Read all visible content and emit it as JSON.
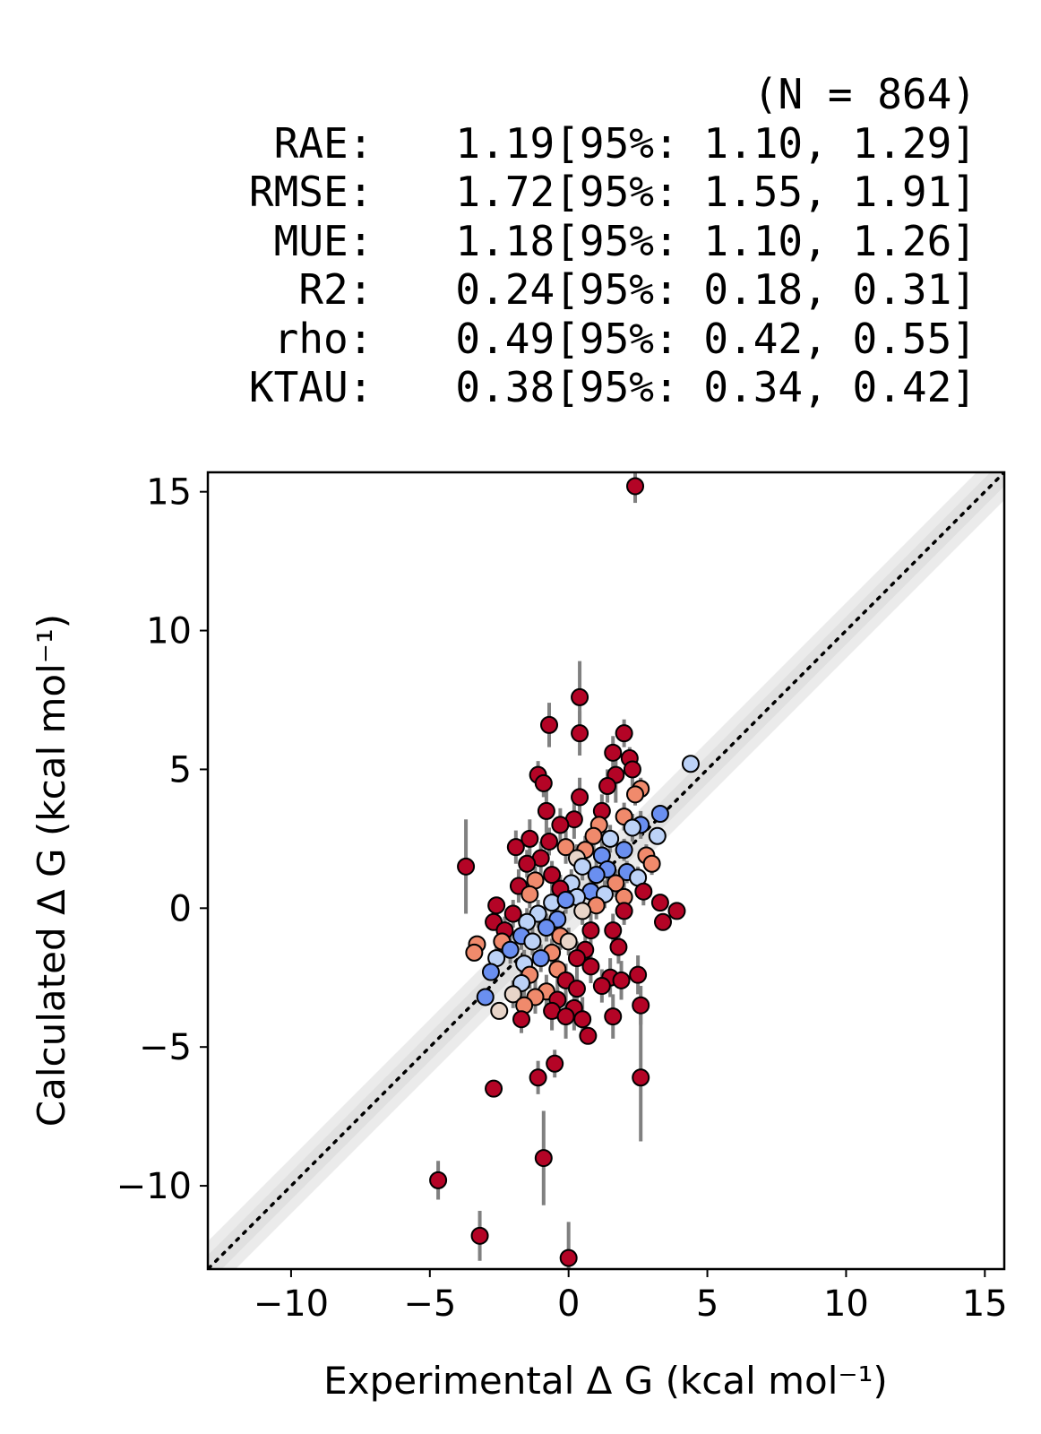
{
  "stats": {
    "n_label": "(N = 864)",
    "rows": [
      {
        "label": "RAE:",
        "value": "1.19",
        "ci": "[95%: 1.10, 1.29]"
      },
      {
        "label": "RMSE:",
        "value": "1.72",
        "ci": "[95%: 1.55, 1.91]"
      },
      {
        "label": "MUE:",
        "value": "1.18",
        "ci": "[95%: 1.10, 1.26]"
      },
      {
        "label": "R2:",
        "value": "0.24",
        "ci": "[95%: 0.18, 0.31]"
      },
      {
        "label": "rho:",
        "value": "0.49",
        "ci": "[95%: 0.42, 0.55]"
      },
      {
        "label": "KTAU:",
        "value": "0.38",
        "ci": "[95%: 0.34, 0.42]"
      }
    ]
  },
  "chart_data": {
    "type": "scatter",
    "xlabel": "Experimental Δ G (kcal mol⁻¹)",
    "ylabel": "Calculated Δ G (kcal mol⁻¹)",
    "xlim": [
      -13,
      15.7
    ],
    "ylim": [
      -13,
      15.7
    ],
    "xticks": [
      -10,
      -5,
      0,
      5,
      10,
      15
    ],
    "yticks": [
      -10,
      -5,
      0,
      5,
      10,
      15
    ],
    "tick_labels": [
      "−10",
      "−5",
      "0",
      "5",
      "10",
      "15"
    ],
    "identity_line": true,
    "shaded_bands_kcal": [
      0.5,
      1.0
    ],
    "colors": {
      "red": "#b40426",
      "salmon": "#f08a6c",
      "pale": "#e8d5c9",
      "light_blue": "#bcd2f7",
      "blue": "#6a8ff0",
      "errorbar": "#808080",
      "band": "#d3d3d3"
    },
    "points": [
      {
        "x": 2.4,
        "y": 15.2,
        "err": 0.6,
        "c": "red"
      },
      {
        "x": 0.4,
        "y": 7.6,
        "err": 1.3,
        "c": "red"
      },
      {
        "x": -0.7,
        "y": 6.6,
        "err": 0.8,
        "c": "red"
      },
      {
        "x": 0.4,
        "y": 6.3,
        "err": 0.8,
        "c": "red"
      },
      {
        "x": 2.0,
        "y": 6.3,
        "err": 0.5,
        "c": "red"
      },
      {
        "x": 2.2,
        "y": 5.4,
        "err": 0.4,
        "c": "red"
      },
      {
        "x": 1.6,
        "y": 5.6,
        "err": 0.6,
        "c": "red"
      },
      {
        "x": 4.4,
        "y": 5.2,
        "err": 0.0,
        "c": "light_blue"
      },
      {
        "x": 2.3,
        "y": 5.0,
        "err": 0.6,
        "c": "red"
      },
      {
        "x": -1.1,
        "y": 4.8,
        "err": 0.5,
        "c": "red"
      },
      {
        "x": -0.9,
        "y": 4.5,
        "err": 0.5,
        "c": "red"
      },
      {
        "x": 1.7,
        "y": 4.8,
        "err": 1.0,
        "c": "red"
      },
      {
        "x": 2.6,
        "y": 4.3,
        "err": 0.4,
        "c": "salmon"
      },
      {
        "x": 2.4,
        "y": 4.1,
        "err": 0.4,
        "c": "salmon"
      },
      {
        "x": 1.4,
        "y": 4.4,
        "err": 0.6,
        "c": "red"
      },
      {
        "x": 0.4,
        "y": 4.0,
        "err": 0.7,
        "c": "red"
      },
      {
        "x": -0.8,
        "y": 3.5,
        "err": 0.8,
        "c": "red"
      },
      {
        "x": 3.3,
        "y": 3.4,
        "err": 0.0,
        "c": "blue"
      },
      {
        "x": 1.2,
        "y": 3.5,
        "err": 0.6,
        "c": "red"
      },
      {
        "x": 2.0,
        "y": 3.3,
        "err": 0.5,
        "c": "salmon"
      },
      {
        "x": 0.2,
        "y": 3.2,
        "err": 0.7,
        "c": "red"
      },
      {
        "x": -0.3,
        "y": 3.0,
        "err": 0.6,
        "c": "red"
      },
      {
        "x": 1.1,
        "y": 3.0,
        "err": 0.5,
        "c": "salmon"
      },
      {
        "x": 2.6,
        "y": 3.0,
        "err": 0.5,
        "c": "blue"
      },
      {
        "x": 2.3,
        "y": 2.9,
        "err": 0.5,
        "c": "light_blue"
      },
      {
        "x": 3.2,
        "y": 2.6,
        "err": 0.0,
        "c": "light_blue"
      },
      {
        "x": 0.9,
        "y": 2.6,
        "err": 0.6,
        "c": "salmon"
      },
      {
        "x": -1.4,
        "y": 2.5,
        "err": 0.7,
        "c": "red"
      },
      {
        "x": -0.7,
        "y": 2.4,
        "err": 0.5,
        "c": "red"
      },
      {
        "x": 1.5,
        "y": 2.5,
        "err": 0.5,
        "c": "light_blue"
      },
      {
        "x": -1.9,
        "y": 2.2,
        "err": 0.6,
        "c": "red"
      },
      {
        "x": -0.1,
        "y": 2.2,
        "err": 0.6,
        "c": "salmon"
      },
      {
        "x": 0.6,
        "y": 2.1,
        "err": 0.5,
        "c": "salmon"
      },
      {
        "x": 2.0,
        "y": 2.1,
        "err": 0.4,
        "c": "blue"
      },
      {
        "x": 2.8,
        "y": 1.9,
        "err": 0.4,
        "c": "salmon"
      },
      {
        "x": -1.0,
        "y": 1.8,
        "err": 0.6,
        "c": "red"
      },
      {
        "x": 0.3,
        "y": 1.8,
        "err": 0.5,
        "c": "pale"
      },
      {
        "x": 1.2,
        "y": 1.9,
        "err": 0.5,
        "c": "blue"
      },
      {
        "x": 3.0,
        "y": 1.6,
        "err": 0.4,
        "c": "salmon"
      },
      {
        "x": -3.7,
        "y": 1.5,
        "err": 1.7,
        "c": "red"
      },
      {
        "x": -1.5,
        "y": 1.6,
        "err": 0.5,
        "c": "red"
      },
      {
        "x": 0.5,
        "y": 1.5,
        "err": 0.5,
        "c": "light_blue"
      },
      {
        "x": 1.4,
        "y": 1.4,
        "err": 0.5,
        "c": "blue"
      },
      {
        "x": 2.1,
        "y": 1.3,
        "err": 0.4,
        "c": "blue"
      },
      {
        "x": -0.6,
        "y": 1.2,
        "err": 0.5,
        "c": "red"
      },
      {
        "x": 1.0,
        "y": 1.2,
        "err": 0.5,
        "c": "blue"
      },
      {
        "x": 2.5,
        "y": 1.1,
        "err": 0.4,
        "c": "light_blue"
      },
      {
        "x": -1.2,
        "y": 1.0,
        "err": 0.5,
        "c": "salmon"
      },
      {
        "x": 0.1,
        "y": 0.9,
        "err": 0.5,
        "c": "light_blue"
      },
      {
        "x": 1.7,
        "y": 0.9,
        "err": 0.5,
        "c": "salmon"
      },
      {
        "x": -1.8,
        "y": 0.8,
        "err": 0.6,
        "c": "red"
      },
      {
        "x": -0.3,
        "y": 0.7,
        "err": 0.5,
        "c": "red"
      },
      {
        "x": 0.8,
        "y": 0.6,
        "err": 0.5,
        "c": "blue"
      },
      {
        "x": 2.7,
        "y": 0.6,
        "err": 0.5,
        "c": "red"
      },
      {
        "x": -1.4,
        "y": 0.5,
        "err": 0.5,
        "c": "salmon"
      },
      {
        "x": 0.3,
        "y": 0.4,
        "err": 0.5,
        "c": "light_blue"
      },
      {
        "x": 1.3,
        "y": 0.5,
        "err": 0.5,
        "c": "light_blue"
      },
      {
        "x": 2.0,
        "y": 0.4,
        "err": 0.5,
        "c": "salmon"
      },
      {
        "x": 3.3,
        "y": 0.2,
        "err": 0.0,
        "c": "red"
      },
      {
        "x": -2.6,
        "y": 0.1,
        "err": 0.0,
        "c": "red"
      },
      {
        "x": -0.6,
        "y": 0.2,
        "err": 0.5,
        "c": "light_blue"
      },
      {
        "x": -0.1,
        "y": 0.3,
        "err": 0.5,
        "c": "blue"
      },
      {
        "x": 1.0,
        "y": 0.1,
        "err": 0.5,
        "c": "salmon"
      },
      {
        "x": 3.9,
        "y": -0.1,
        "err": 0.0,
        "c": "red"
      },
      {
        "x": -2.0,
        "y": -0.2,
        "err": 0.5,
        "c": "red"
      },
      {
        "x": -1.1,
        "y": -0.2,
        "err": 0.5,
        "c": "light_blue"
      },
      {
        "x": 0.5,
        "y": -0.1,
        "err": 0.5,
        "c": "pale"
      },
      {
        "x": 2.0,
        "y": -0.1,
        "err": 0.5,
        "c": "red"
      },
      {
        "x": -2.7,
        "y": -0.5,
        "err": 0.0,
        "c": "red"
      },
      {
        "x": -1.5,
        "y": -0.5,
        "err": 0.5,
        "c": "light_blue"
      },
      {
        "x": -0.4,
        "y": -0.4,
        "err": 0.5,
        "c": "blue"
      },
      {
        "x": 3.4,
        "y": -0.5,
        "err": 0.0,
        "c": "red"
      },
      {
        "x": -2.3,
        "y": -0.8,
        "err": 0.5,
        "c": "red"
      },
      {
        "x": -0.8,
        "y": -0.7,
        "err": 0.5,
        "c": "blue"
      },
      {
        "x": 0.8,
        "y": -0.8,
        "err": 0.6,
        "c": "red"
      },
      {
        "x": 1.6,
        "y": -0.8,
        "err": 0.6,
        "c": "red"
      },
      {
        "x": -1.7,
        "y": -1.0,
        "err": 0.5,
        "c": "blue"
      },
      {
        "x": -0.3,
        "y": -1.0,
        "err": 0.5,
        "c": "salmon"
      },
      {
        "x": -2.4,
        "y": -1.2,
        "err": 0.5,
        "c": "salmon"
      },
      {
        "x": -1.3,
        "y": -1.2,
        "err": 0.5,
        "c": "light_blue"
      },
      {
        "x": 0.0,
        "y": -1.2,
        "err": 0.5,
        "c": "pale"
      },
      {
        "x": 1.8,
        "y": -1.4,
        "err": 0.6,
        "c": "red"
      },
      {
        "x": -3.3,
        "y": -1.3,
        "err": 0.0,
        "c": "salmon"
      },
      {
        "x": -3.4,
        "y": -1.6,
        "err": 0.0,
        "c": "salmon"
      },
      {
        "x": -2.1,
        "y": -1.5,
        "err": 0.5,
        "c": "blue"
      },
      {
        "x": -0.6,
        "y": -1.6,
        "err": 0.5,
        "c": "salmon"
      },
      {
        "x": 0.6,
        "y": -1.5,
        "err": 0.6,
        "c": "red"
      },
      {
        "x": -2.6,
        "y": -1.8,
        "err": 0.5,
        "c": "light_blue"
      },
      {
        "x": -1.0,
        "y": -1.8,
        "err": 0.5,
        "c": "blue"
      },
      {
        "x": 0.3,
        "y": -1.8,
        "err": 0.6,
        "c": "red"
      },
      {
        "x": -1.6,
        "y": -2.0,
        "err": 0.5,
        "c": "light_blue"
      },
      {
        "x": 0.8,
        "y": -2.1,
        "err": 0.6,
        "c": "red"
      },
      {
        "x": -0.4,
        "y": -2.2,
        "err": 0.6,
        "c": "salmon"
      },
      {
        "x": -2.8,
        "y": -2.3,
        "err": 0.0,
        "c": "blue"
      },
      {
        "x": -1.4,
        "y": -2.4,
        "err": 0.5,
        "c": "salmon"
      },
      {
        "x": 1.5,
        "y": -2.5,
        "err": 0.7,
        "c": "red"
      },
      {
        "x": 1.9,
        "y": -2.6,
        "err": 0.7,
        "c": "red"
      },
      {
        "x": 2.5,
        "y": -2.4,
        "err": 0.7,
        "c": "red"
      },
      {
        "x": -0.1,
        "y": -2.6,
        "err": 0.6,
        "c": "red"
      },
      {
        "x": -1.7,
        "y": -2.7,
        "err": 0.5,
        "c": "light_blue"
      },
      {
        "x": 1.2,
        "y": -2.8,
        "err": 0.6,
        "c": "red"
      },
      {
        "x": -0.8,
        "y": -3.0,
        "err": 0.6,
        "c": "salmon"
      },
      {
        "x": 0.3,
        "y": -2.9,
        "err": 0.7,
        "c": "red"
      },
      {
        "x": -2.0,
        "y": -3.1,
        "err": 0.5,
        "c": "pale"
      },
      {
        "x": -1.2,
        "y": -3.2,
        "err": 0.6,
        "c": "salmon"
      },
      {
        "x": -3.0,
        "y": -3.2,
        "err": 0.0,
        "c": "blue"
      },
      {
        "x": -0.4,
        "y": -3.3,
        "err": 0.7,
        "c": "red"
      },
      {
        "x": -1.6,
        "y": -3.5,
        "err": 0.6,
        "c": "salmon"
      },
      {
        "x": 2.6,
        "y": -3.5,
        "err": 0.7,
        "c": "red"
      },
      {
        "x": 0.2,
        "y": -3.6,
        "err": 0.8,
        "c": "red"
      },
      {
        "x": -0.6,
        "y": -3.7,
        "err": 0.7,
        "c": "red"
      },
      {
        "x": -2.5,
        "y": -3.7,
        "err": 0.0,
        "c": "pale"
      },
      {
        "x": -0.1,
        "y": -3.9,
        "err": 0.8,
        "c": "red"
      },
      {
        "x": 1.6,
        "y": -3.9,
        "err": 0.8,
        "c": "red"
      },
      {
        "x": -1.7,
        "y": -4.0,
        "err": 0.5,
        "c": "red"
      },
      {
        "x": 0.5,
        "y": -4.0,
        "err": 0.8,
        "c": "red"
      },
      {
        "x": 0.7,
        "y": -4.6,
        "err": 0.0,
        "c": "red"
      },
      {
        "x": -0.5,
        "y": -5.6,
        "err": 0.5,
        "c": "red"
      },
      {
        "x": -1.1,
        "y": -6.1,
        "err": 0.6,
        "c": "red"
      },
      {
        "x": 2.6,
        "y": -6.1,
        "err": 2.3,
        "c": "red"
      },
      {
        "x": -2.7,
        "y": -6.5,
        "err": 0.0,
        "c": "red"
      },
      {
        "x": -0.9,
        "y": -9.0,
        "err": 1.7,
        "c": "red"
      },
      {
        "x": -4.7,
        "y": -9.8,
        "err": 0.7,
        "c": "red"
      },
      {
        "x": -3.2,
        "y": -11.8,
        "err": 0.9,
        "c": "red"
      },
      {
        "x": 0.0,
        "y": -12.6,
        "err": 1.3,
        "c": "red"
      }
    ]
  }
}
